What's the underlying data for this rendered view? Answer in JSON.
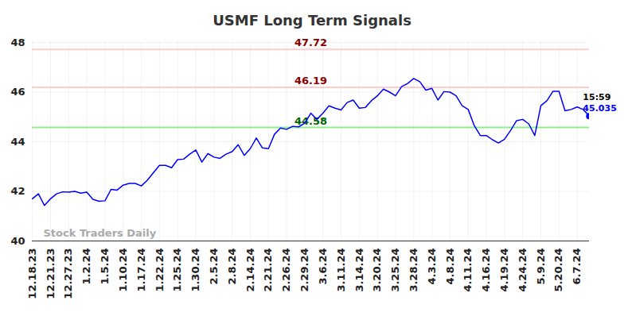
{
  "chart_data": {
    "type": "line",
    "title": "USMF Long Term Signals",
    "categories": [
      "12.18.23",
      null,
      null,
      "12.21.23",
      null,
      null,
      "12.27.23",
      null,
      null,
      "1.2.24",
      null,
      null,
      "1.5.24",
      null,
      null,
      "1.10.24",
      null,
      null,
      "1.17.24",
      null,
      null,
      "1.22.24",
      null,
      null,
      "1.25.24",
      null,
      null,
      "1.30.24",
      null,
      null,
      "2.5.24",
      null,
      null,
      "2.8.24",
      null,
      null,
      "2.14.24",
      null,
      null,
      "2.21.24",
      null,
      null,
      "2.26.24",
      null,
      null,
      "2.29.24",
      null,
      null,
      "3.6.24",
      null,
      null,
      "3.11.24",
      null,
      null,
      "3.14.24",
      null,
      null,
      "3.20.24",
      null,
      null,
      "3.25.24",
      null,
      null,
      "3.28.24",
      null,
      null,
      "4.3.24",
      null,
      null,
      "4.8.24",
      null,
      null,
      "4.11.24",
      null,
      null,
      "4.16.24",
      null,
      null,
      "4.19.24",
      null,
      null,
      "4.24.24",
      null,
      null,
      "5.9.24",
      null,
      null,
      "5.20.24",
      null,
      null,
      "6.7.24",
      null,
      null
    ],
    "values": [
      41.7,
      41.9,
      41.43,
      41.7,
      41.9,
      41.98,
      41.97,
      42.0,
      41.93,
      41.97,
      41.68,
      41.6,
      41.62,
      42.08,
      42.05,
      42.25,
      42.32,
      42.32,
      42.22,
      42.45,
      42.75,
      43.05,
      43.05,
      42.95,
      43.28,
      43.3,
      43.5,
      43.67,
      43.18,
      43.52,
      43.38,
      43.33,
      43.5,
      43.6,
      43.88,
      43.45,
      43.72,
      44.15,
      43.75,
      43.72,
      44.3,
      44.55,
      44.5,
      44.62,
      44.6,
      44.75,
      45.15,
      44.9,
      45.15,
      45.45,
      45.35,
      45.28,
      45.58,
      45.68,
      45.35,
      45.38,
      45.65,
      45.85,
      46.12,
      46.0,
      45.85,
      46.22,
      46.35,
      46.55,
      46.42,
      46.08,
      46.15,
      45.68,
      46.02,
      46.0,
      45.85,
      45.45,
      45.3,
      44.65,
      44.25,
      44.25,
      44.08,
      43.95,
      44.1,
      44.45,
      44.85,
      44.9,
      44.72,
      44.25,
      45.45,
      45.65,
      46.03,
      46.03,
      45.25,
      45.3,
      45.4,
      45.3,
      45.035
    ],
    "color": "#0000ff",
    "ylim": [
      40,
      48
    ],
    "yticks": [
      40,
      42,
      44,
      46,
      48
    ],
    "grid": true,
    "annotations": [
      {
        "y": 47.72,
        "label": "47.72",
        "color": "#ffcccc",
        "label_color": "#8b0000"
      },
      {
        "y": 46.19,
        "label": "46.19",
        "color": "#ffcccc",
        "label_color": "#8b0000"
      },
      {
        "y": 44.58,
        "label": "44.58",
        "color": "#90ee90",
        "label_color": "#006400"
      }
    ],
    "last_label": "15:59",
    "watermark": "Stock Traders Daily"
  }
}
